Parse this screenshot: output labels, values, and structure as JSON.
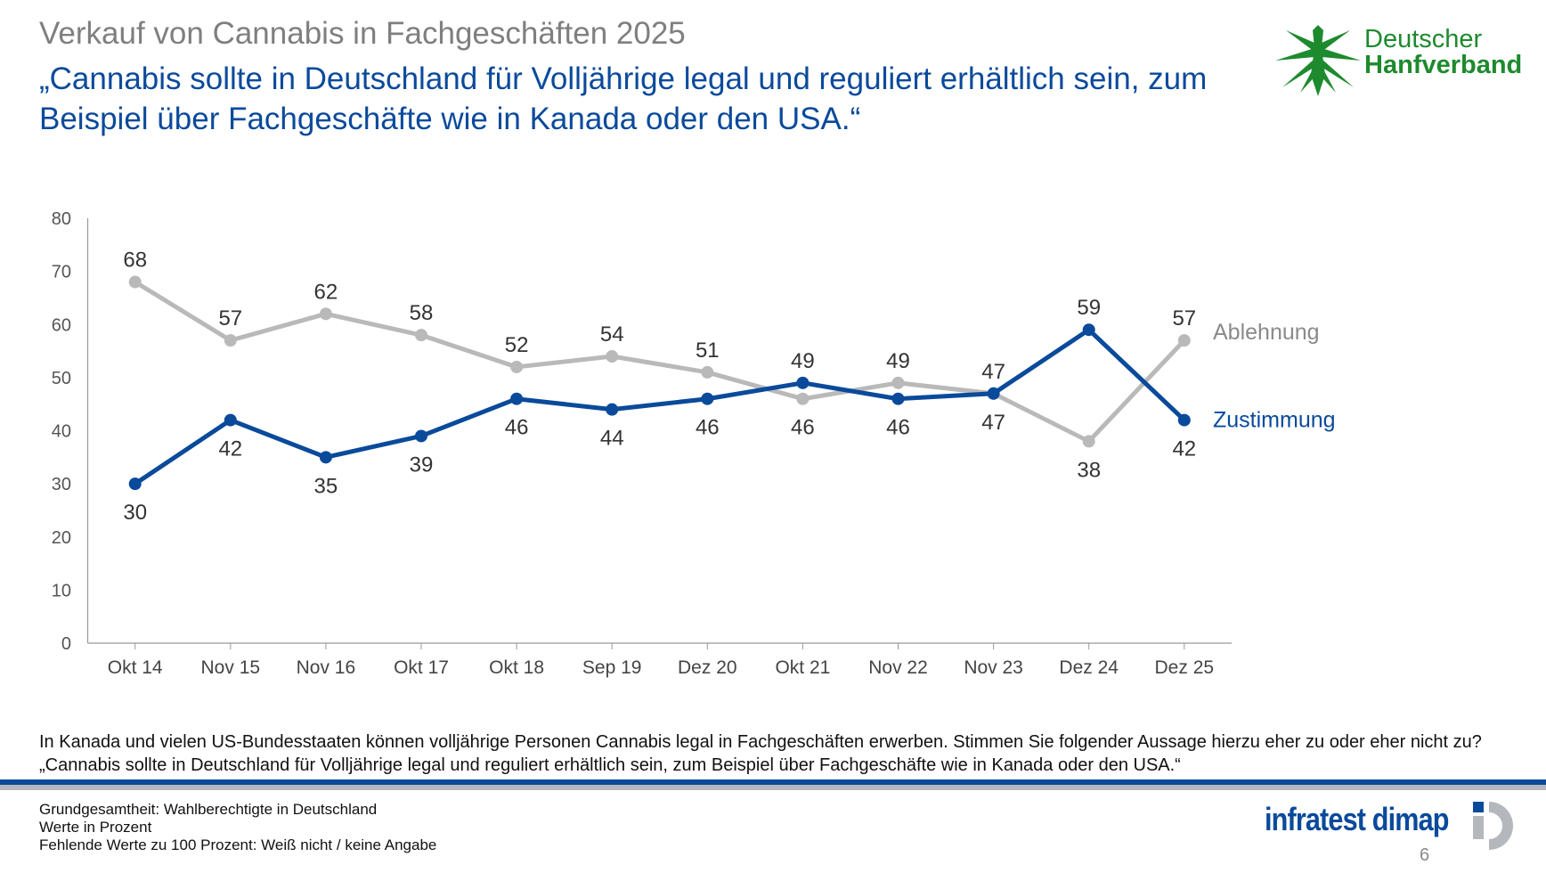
{
  "header": {
    "supertitle": "Verkauf von Cannabis in Fachgeschäften 2025",
    "title": "„Cannabis sollte in Deutschland für Volljährige legal und reguliert erhältlich sein, zum Beispiel über Fachgeschäfte wie in Kanada oder den USA.“"
  },
  "logo_dhv": {
    "line1": "Deutscher",
    "line2": "Hanfverband",
    "color": "#1e8a2e"
  },
  "chart_data": {
    "type": "line",
    "categories": [
      "Okt 14",
      "Nov 15",
      "Nov 16",
      "Okt 17",
      "Okt 18",
      "Sep 19",
      "Dez 20",
      "Okt 21",
      "Nov 22",
      "Nov 23",
      "Dez 24",
      "Dez 25"
    ],
    "ylim": [
      0,
      80
    ],
    "yticks": [
      0,
      10,
      20,
      30,
      40,
      50,
      60,
      70,
      80
    ],
    "grid": false,
    "legend_placement": "right, at line ends",
    "series": [
      {
        "name": "Ablehnung",
        "color": "#b9b9b9",
        "values": [
          68,
          57,
          62,
          58,
          52,
          54,
          51,
          46,
          49,
          47,
          38,
          57
        ]
      },
      {
        "name": "Zustimmung",
        "color": "#0a4a9b",
        "values": [
          30,
          42,
          35,
          39,
          46,
          44,
          46,
          49,
          46,
          47,
          59,
          42
        ]
      }
    ]
  },
  "question": "In Kanada und vielen US-Bundesstaaten können volljährige Personen Cannabis legal in Fachgeschäften erwerben. Stimmen Sie folgender Aussage hierzu eher zu oder eher nicht zu? „Cannabis sollte in Deutschland für Volljährige legal und reguliert erhältlich sein, zum Beispiel über Fachgeschäfte wie in Kanada oder den USA.“",
  "footer": {
    "lines": [
      "Grundgesamtheit: Wahlberechtigte in Deutschland",
      "Werte in Prozent",
      "Fehlende Werte zu 100 Prozent: Weiß nicht / keine Angabe"
    ],
    "brand": "infratest dimap",
    "page": "6"
  }
}
